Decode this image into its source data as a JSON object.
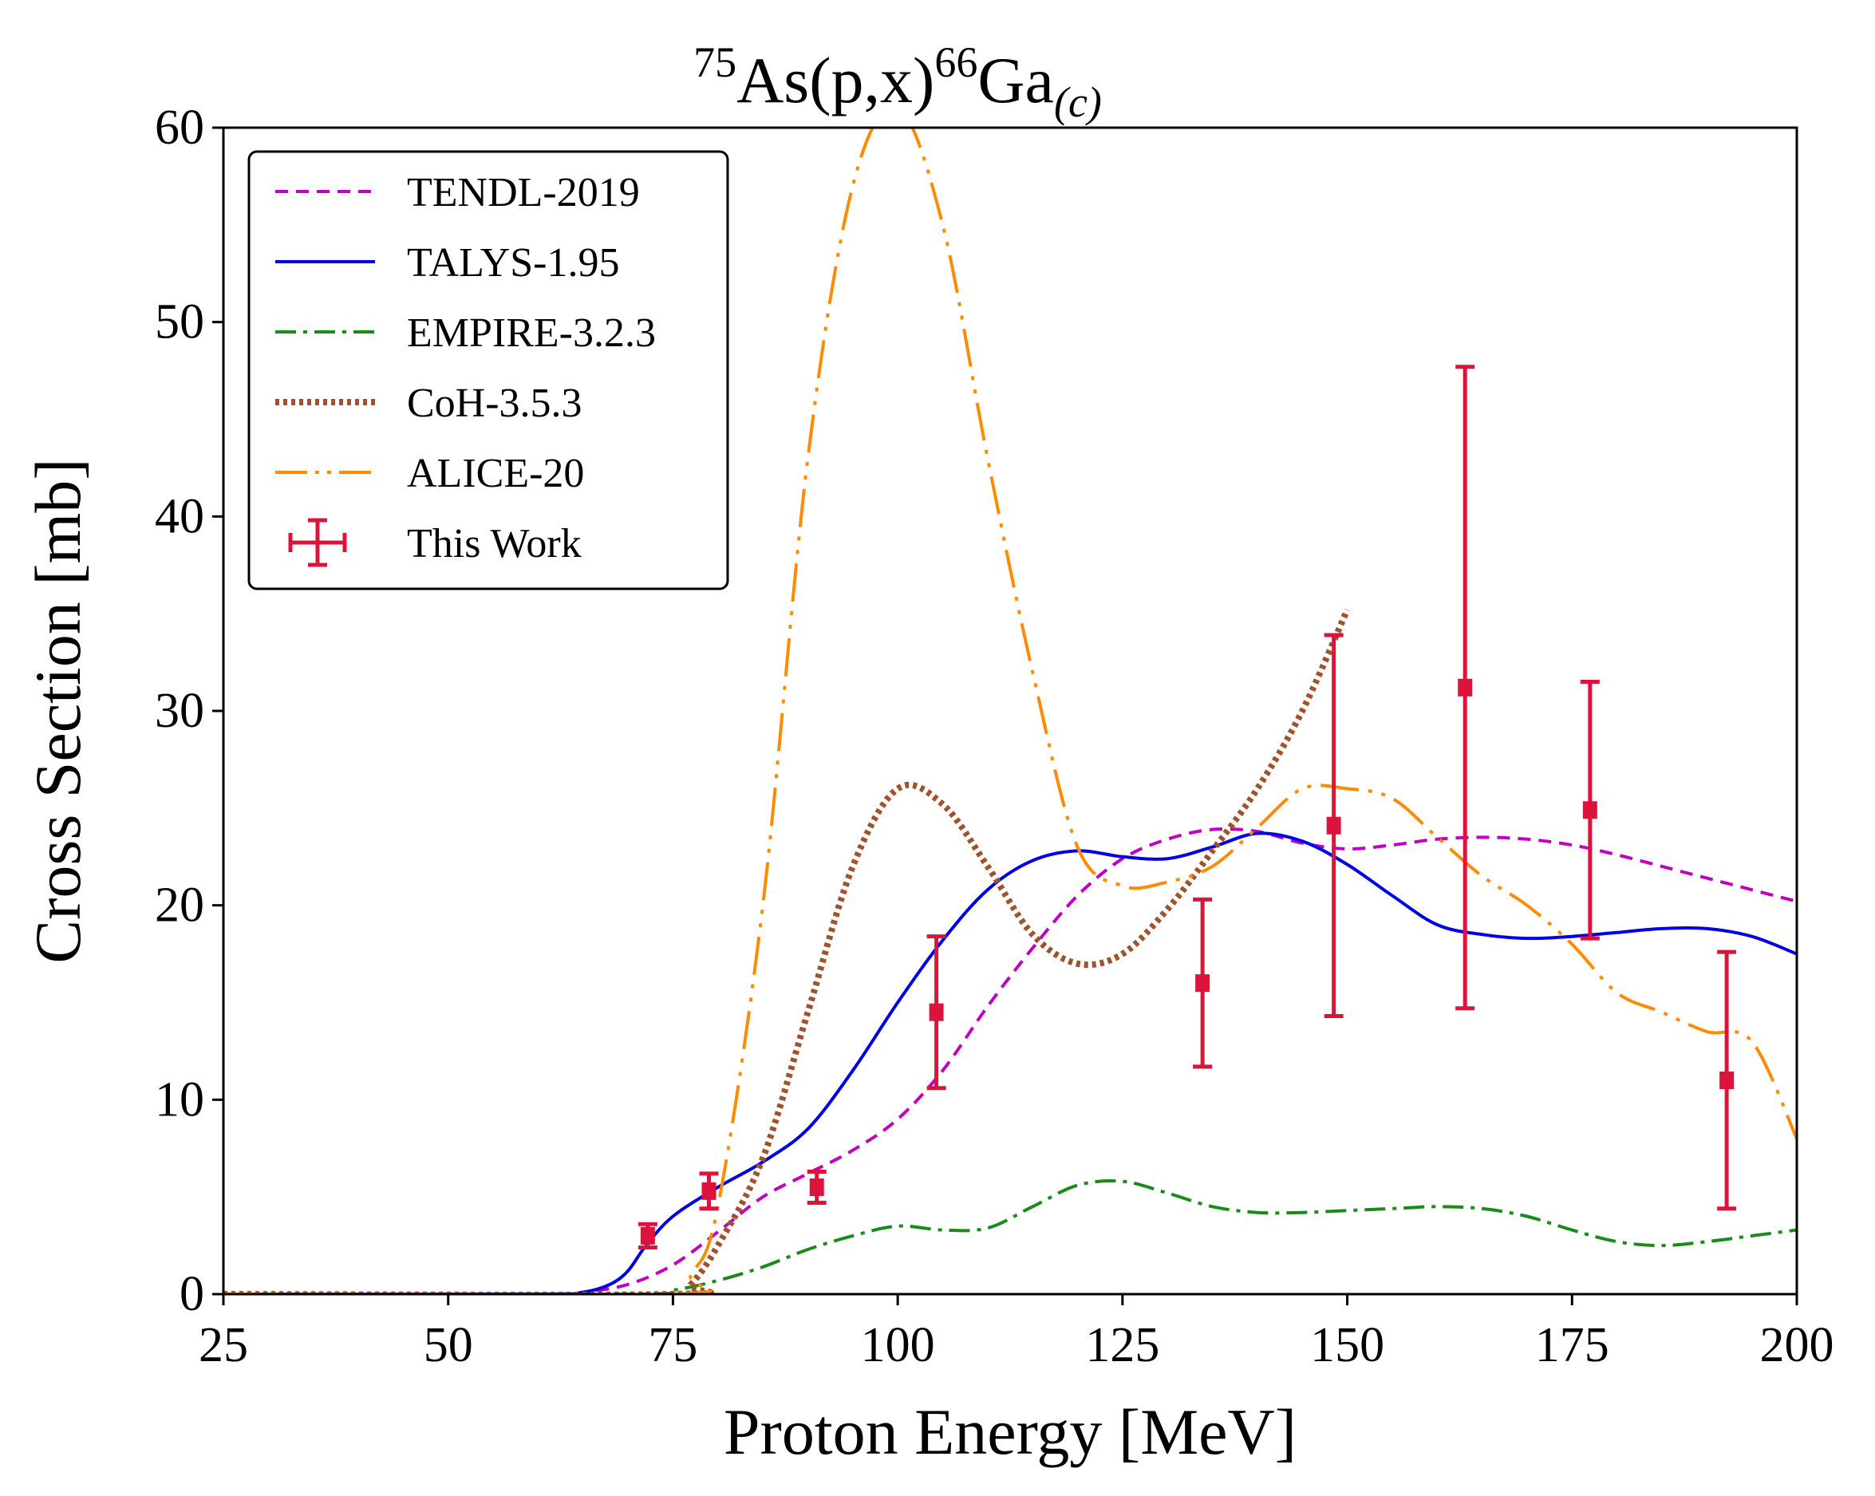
{
  "chart_data": {
    "type": "line",
    "title": {
      "mass_target": "75",
      "element_target": "As",
      "reaction": "(p,x)",
      "mass_product": "66",
      "element_product": "Ga",
      "subscript": "(c)"
    },
    "xlabel": "Proton Energy [MeV]",
    "ylabel": "Cross Section [mb]",
    "xlim": [
      25,
      200
    ],
    "ylim": [
      0,
      60
    ],
    "xticks": [
      25,
      50,
      75,
      100,
      125,
      150,
      175,
      200
    ],
    "yticks": [
      0,
      10,
      20,
      30,
      40,
      50,
      60
    ],
    "legend_position": "top-left",
    "series": [
      {
        "name": "TENDL-2019",
        "color": "#c000c0",
        "style": "dashed",
        "x": [
          25,
          60,
          65,
          70,
          75,
          80,
          85,
          90,
          95,
          100,
          105,
          110,
          115,
          120,
          125,
          130,
          135,
          140,
          145,
          150,
          155,
          160,
          165,
          170,
          175,
          180,
          185,
          190,
          195,
          200
        ],
        "y": [
          0,
          0,
          0.1,
          0.5,
          1.5,
          3.2,
          5.0,
          6.2,
          7.4,
          9.0,
          11.5,
          14.8,
          17.8,
          20.5,
          22.4,
          23.4,
          23.9,
          23.8,
          23.2,
          22.9,
          23.1,
          23.4,
          23.5,
          23.4,
          23.1,
          22.6,
          22.0,
          21.4,
          20.8,
          20.2
        ]
      },
      {
        "name": "TALYS-1.95",
        "color": "#0000e6",
        "style": "solid",
        "x": [
          25,
          60,
          65,
          68,
          70,
          72,
          75,
          80,
          85,
          90,
          95,
          100,
          105,
          110,
          115,
          120,
          125,
          130,
          135,
          140,
          145,
          150,
          155,
          160,
          165,
          170,
          175,
          180,
          185,
          190,
          195,
          200
        ],
        "y": [
          0,
          0,
          0.1,
          0.5,
          1.2,
          2.5,
          4.0,
          5.5,
          6.8,
          8.5,
          11.5,
          15.0,
          18.2,
          20.8,
          22.3,
          22.8,
          22.5,
          22.4,
          23.0,
          23.7,
          23.3,
          22.1,
          20.5,
          19.0,
          18.5,
          18.3,
          18.4,
          18.6,
          18.8,
          18.8,
          18.4,
          17.5
        ]
      },
      {
        "name": "EMPIRE-3.2.3",
        "color": "#1a8a1a",
        "style": "dashdot",
        "x": [
          25,
          70,
          75,
          80,
          85,
          90,
          95,
          100,
          105,
          110,
          115,
          120,
          125,
          130,
          135,
          140,
          145,
          150,
          155,
          160,
          165,
          170,
          175,
          180,
          185,
          190,
          195,
          200
        ],
        "y": [
          0,
          0,
          0.2,
          0.7,
          1.4,
          2.3,
          3.0,
          3.5,
          3.3,
          3.4,
          4.5,
          5.6,
          5.8,
          5.2,
          4.5,
          4.2,
          4.2,
          4.3,
          4.4,
          4.5,
          4.4,
          4.0,
          3.3,
          2.7,
          2.5,
          2.7,
          3.0,
          3.3
        ]
      },
      {
        "name": "CoH-3.5.3",
        "color": "#a0522d",
        "style": "dotted",
        "x": [
          25,
          75,
          77,
          80,
          85,
          90,
          95,
          100,
          105,
          110,
          115,
          120,
          125,
          130,
          135,
          140,
          145,
          150
        ],
        "y": [
          0,
          0,
          0.5,
          2.5,
          7.0,
          14.5,
          22.0,
          26.0,
          25.2,
          22.0,
          18.5,
          17.0,
          17.5,
          19.8,
          22.8,
          26.0,
          30.0,
          35.2
        ]
      },
      {
        "name": "ALICE-20",
        "color": "#ff8c00",
        "style": "dashdotdot",
        "x": [
          25,
          75,
          77,
          80,
          85,
          90,
          95,
          100,
          105,
          110,
          115,
          120,
          125,
          130,
          135,
          140,
          145,
          150,
          155,
          160,
          165,
          170,
          175,
          180,
          185,
          190,
          195,
          200
        ],
        "y": [
          0,
          0,
          1.0,
          4.5,
          20.0,
          43.0,
          57.0,
          61.0,
          55.0,
          43.0,
          32.0,
          23.0,
          21.0,
          21.2,
          22.0,
          24.0,
          26.0,
          26.0,
          25.5,
          23.5,
          21.5,
          20.0,
          18.0,
          15.5,
          14.5,
          13.5,
          13.0,
          8.0
        ]
      }
    ],
    "experimental": {
      "name": "This Work",
      "color": "#dc143c",
      "points": [
        {
          "x": 72.2,
          "y": 3.0,
          "yerr": 0.6,
          "xerr": 0.6
        },
        {
          "x": 79.0,
          "y": 5.3,
          "yerr": 0.9,
          "xerr": 0.6
        },
        {
          "x": 91.0,
          "y": 5.5,
          "yerr": 0.8,
          "xerr": 0.6
        },
        {
          "x": 104.3,
          "y": 14.5,
          "yerr": 3.9,
          "xerr": 0.6
        },
        {
          "x": 133.9,
          "y": 16.0,
          "yerr": 4.3,
          "xerr": 0.6
        },
        {
          "x": 148.5,
          "y": 24.1,
          "yerr": 9.8,
          "xerr": 0.6
        },
        {
          "x": 163.1,
          "y": 31.2,
          "yerr": 16.5,
          "xerr": 0.6
        },
        {
          "x": 177.0,
          "y": 24.9,
          "yerr": 6.6,
          "xerr": 0.6
        },
        {
          "x": 192.2,
          "y": 11.0,
          "yerr": 6.6,
          "xerr": 0.6
        }
      ]
    }
  }
}
